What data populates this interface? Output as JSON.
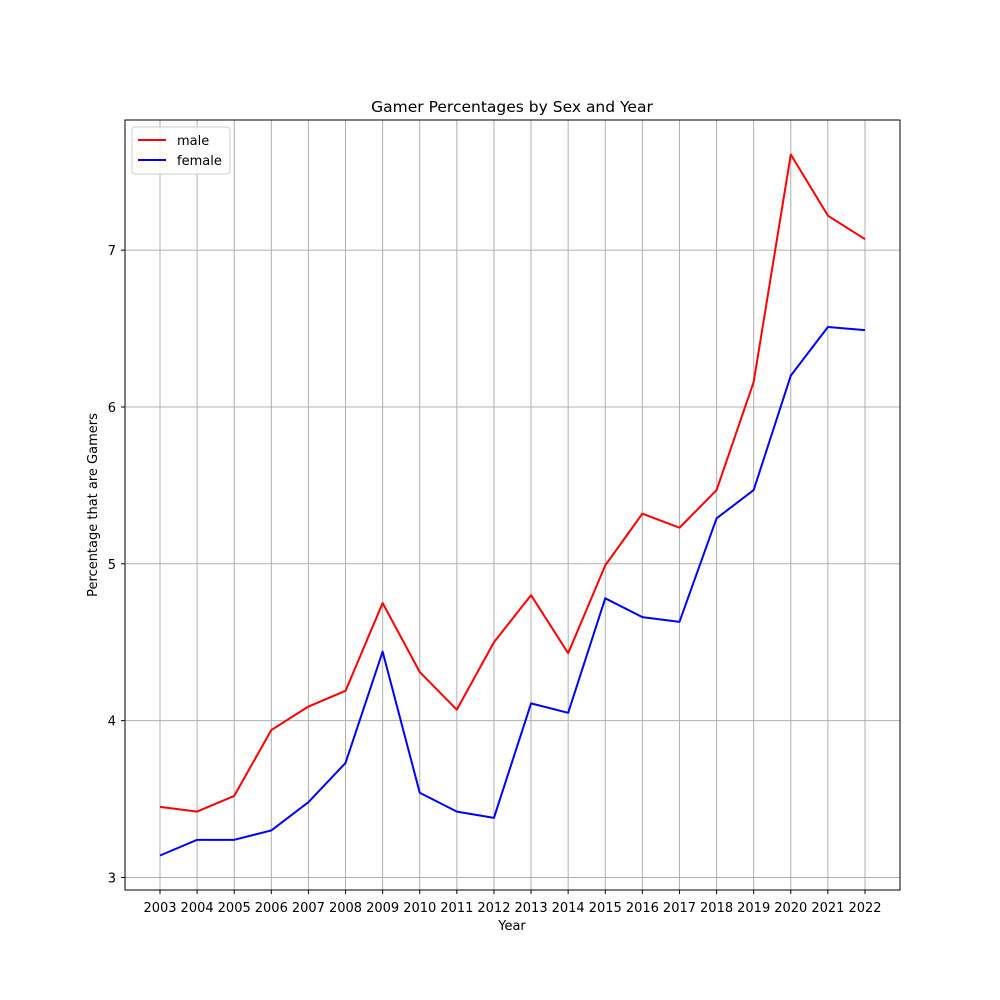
{
  "chart_data": {
    "type": "line",
    "title": "Gamer Percentages by Sex and Year",
    "xlabel": "Year",
    "ylabel": "Percentage that are Gamers",
    "x": [
      "2003",
      "2004",
      "2005",
      "2006",
      "2007",
      "2008",
      "2009",
      "2010",
      "2011",
      "2012",
      "2013",
      "2014",
      "2015",
      "2016",
      "2017",
      "2018",
      "2019",
      "2020",
      "2021",
      "2022"
    ],
    "yticks": [
      3,
      4,
      5,
      6,
      7
    ],
    "ylim": [
      2.92,
      7.83
    ],
    "grid": true,
    "legend_position": "top-left",
    "series": [
      {
        "name": "male",
        "color": "#ff0000",
        "values": [
          3.45,
          3.42,
          3.52,
          3.94,
          4.09,
          4.19,
          4.75,
          4.31,
          4.07,
          4.5,
          4.8,
          4.43,
          4.99,
          5.32,
          5.23,
          5.47,
          6.16,
          7.61,
          7.22,
          7.07
        ]
      },
      {
        "name": "female",
        "color": "#0000ff",
        "values": [
          3.14,
          3.24,
          3.24,
          3.3,
          3.48,
          3.73,
          4.44,
          3.54,
          3.42,
          3.38,
          4.11,
          4.05,
          4.78,
          4.66,
          4.63,
          5.29,
          5.47,
          6.2,
          6.51,
          6.49
        ]
      }
    ]
  }
}
